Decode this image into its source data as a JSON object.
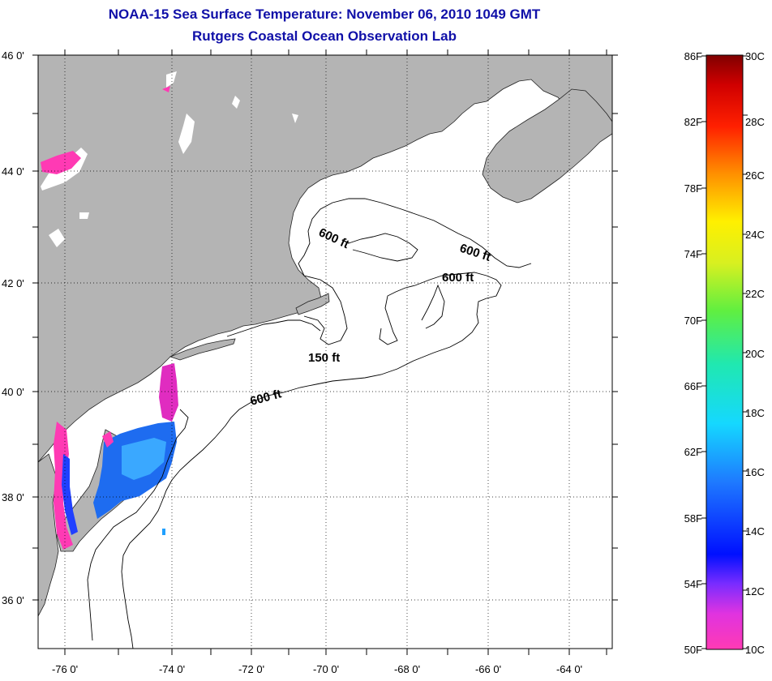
{
  "header": {
    "title": "NOAA-15 Sea Surface Temperature:  November 06, 2010 1049 GMT",
    "subtitle": "Rutgers Coastal Ocean Observation Lab"
  },
  "map": {
    "lat_labels": [
      "46 0'",
      "44 0'",
      "42 0'",
      "40 0'",
      "38 0'",
      "36 0'"
    ],
    "lon_labels": [
      "-76 0'",
      "-74 0'",
      "-72 0'",
      "-70 0'",
      "-68 0'",
      "-66 0'",
      "-64 0'"
    ],
    "depth_labels": [
      "600 ft",
      "600 ft",
      "600 ft",
      "150 ft",
      "600 ft"
    ],
    "colors": {
      "land": "#b4b4b4",
      "ocean": "#ffffff",
      "title": "#1010a8"
    }
  },
  "colorbar": {
    "fahrenheit": [
      "86F",
      "82F",
      "78F",
      "74F",
      "70F",
      "66F",
      "62F",
      "58F",
      "54F",
      "50F"
    ],
    "celsius": [
      "30C",
      "28C",
      "26C",
      "24C",
      "22C",
      "20C",
      "18C",
      "16C",
      "14C",
      "12C",
      "10C"
    ]
  }
}
